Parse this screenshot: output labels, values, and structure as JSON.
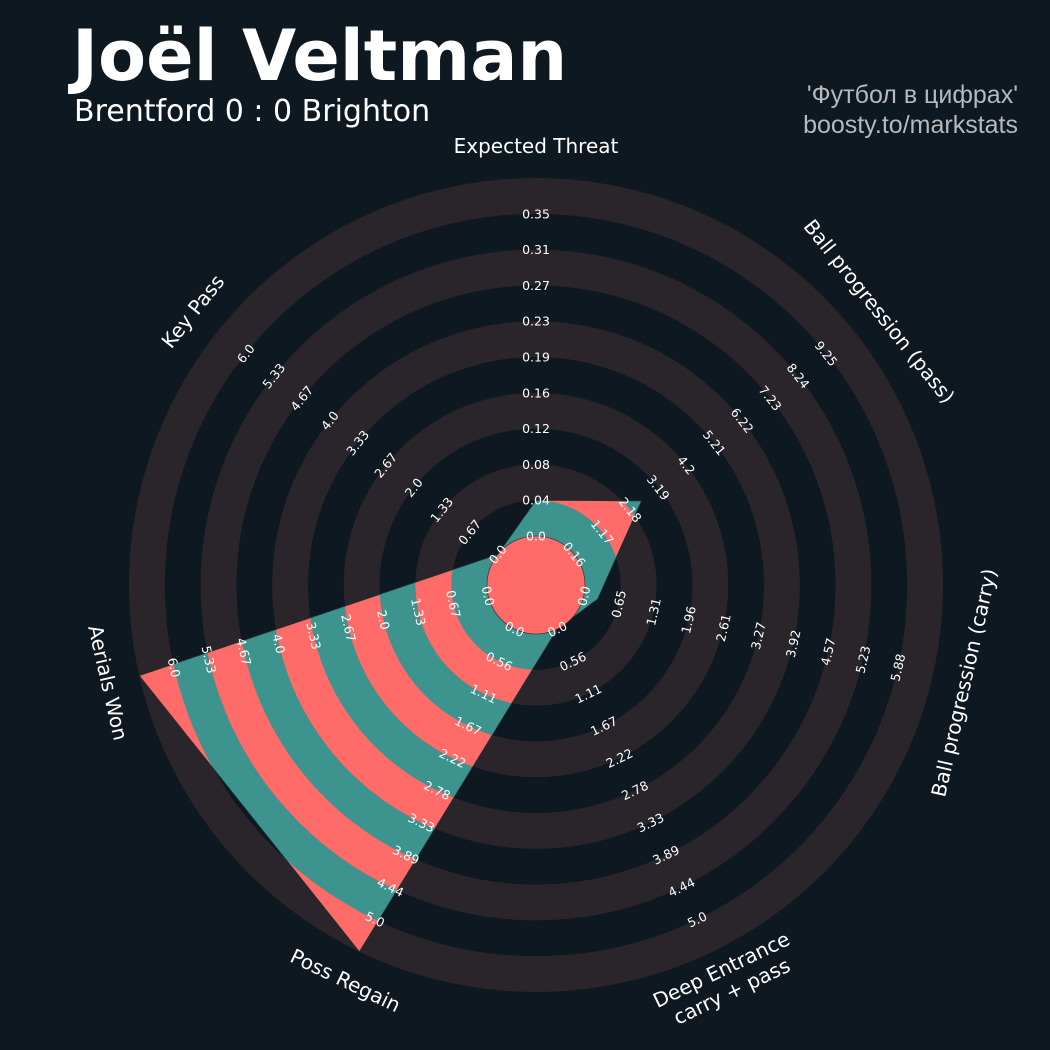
{
  "header": {
    "title": "Joël Veltman",
    "subtitle": "Brentford 0 : 0 Brighton"
  },
  "credit": {
    "line1": "'Футбол в цифрах'",
    "line2": "boosty.to/markstats"
  },
  "colors": {
    "background": "#0e1820",
    "ring_band": "#2a252b",
    "value_teal": "#3d938d",
    "value_salmon": "#fe6b68",
    "text": "#ffffff"
  },
  "chart_data": {
    "type": "radar",
    "title": "Joël Veltman",
    "subtitle": "Brentford 0 : 0 Brighton",
    "grid": true,
    "parameters": [
      {
        "name": "Expected Threat",
        "ticks": [
          "0.0",
          "0.04",
          "0.08",
          "0.12",
          "0.16",
          "0.19",
          "0.23",
          "0.27",
          "0.31",
          "0.35"
        ],
        "value_fraction": 0.1
      },
      {
        "name": "Ball progression (pass)",
        "ticks": [
          "0.16",
          "1.17",
          "2.18",
          "3.19",
          "4.2",
          "5.21",
          "6.22",
          "7.23",
          "8.24",
          "9.25"
        ],
        "value_fraction": 0.24
      },
      {
        "name": "Ball progression (carry)",
        "ticks": [
          "0.0",
          "0.65",
          "1.31",
          "1.96",
          "2.61",
          "3.27",
          "3.92",
          "4.57",
          "5.23",
          "5.88"
        ],
        "value_fraction": 0.04
      },
      {
        "name": "Deep Entrance\ncarry + pass",
        "ticks": [
          "0.0",
          "0.56",
          "1.11",
          "1.67",
          "2.22",
          "2.78",
          "3.33",
          "3.89",
          "4.44",
          "5.0"
        ],
        "value_fraction": 0.0
      },
      {
        "name": "Poss Regain",
        "ticks": [
          "0.0",
          "0.56",
          "1.11",
          "1.67",
          "2.22",
          "2.78",
          "3.33",
          "3.89",
          "4.44",
          "5.0"
        ],
        "value_fraction": 1.0
      },
      {
        "name": "Aerials Won",
        "ticks": [
          "0.0",
          "0.67",
          "1.33",
          "2.0",
          "2.67",
          "3.33",
          "4.0",
          "4.67",
          "5.33",
          "6.0"
        ],
        "value_fraction": 1.0
      },
      {
        "name": "Key Pass",
        "ticks": [
          "0.0",
          "0.67",
          "1.33",
          "2.0",
          "2.67",
          "3.33",
          "4.0",
          "4.67",
          "5.33",
          "6.0"
        ],
        "value_fraction": 0.0
      }
    ]
  }
}
